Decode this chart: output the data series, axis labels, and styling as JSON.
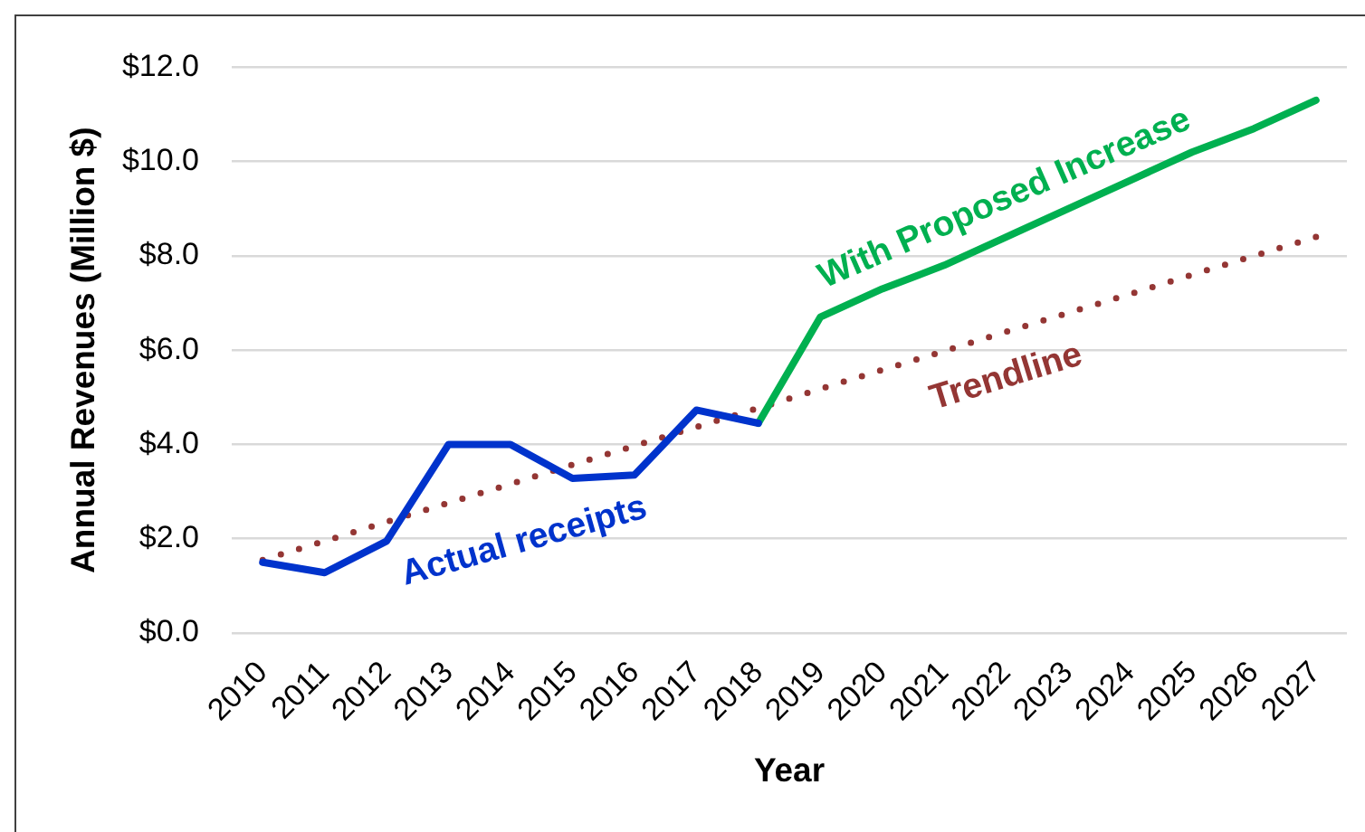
{
  "chart_data": {
    "type": "line",
    "xlabel": "Year",
    "ylabel": "Annual Revenues (Million $)",
    "categories": [
      "2010",
      "2011",
      "2012",
      "2013",
      "2014",
      "2015",
      "2016",
      "2017",
      "2018",
      "2019",
      "2020",
      "2021",
      "2022",
      "2023",
      "2024",
      "2025",
      "2026",
      "2027"
    ],
    "series": [
      {
        "name": "Actual receipts",
        "color": "#0033cc",
        "values": [
          1.5,
          1.28,
          1.95,
          4.0,
          4.0,
          3.28,
          3.35,
          4.73,
          4.45,
          null,
          null,
          null,
          null,
          null,
          null,
          null,
          null,
          null
        ]
      },
      {
        "name": "With Proposed Increase",
        "color": "#00b050",
        "values": [
          null,
          null,
          null,
          null,
          null,
          null,
          null,
          null,
          4.45,
          6.7,
          7.3,
          7.8,
          8.4,
          9.0,
          9.6,
          10.2,
          10.7,
          11.3
        ]
      },
      {
        "name": "Trendline",
        "type": "line",
        "color": "#943634",
        "line_style": "dotted",
        "values": [
          1.55,
          1.95,
          2.36,
          2.76,
          3.16,
          3.57,
          3.97,
          4.37,
          4.77,
          5.18,
          5.58,
          5.98,
          6.39,
          6.79,
          7.19,
          7.6,
          8.0,
          8.4
        ]
      }
    ],
    "ylim": [
      0,
      12
    ],
    "yticks": [
      {
        "value": 0,
        "label": "$0.0"
      },
      {
        "value": 2,
        "label": "$2.0"
      },
      {
        "value": 4,
        "label": "$4.0"
      },
      {
        "value": 6,
        "label": "$6.0"
      },
      {
        "value": 8,
        "label": "$8.0"
      },
      {
        "value": 10,
        "label": "$10.0"
      },
      {
        "value": 12,
        "label": "$12.0"
      }
    ],
    "grid": "y",
    "legend": false
  }
}
